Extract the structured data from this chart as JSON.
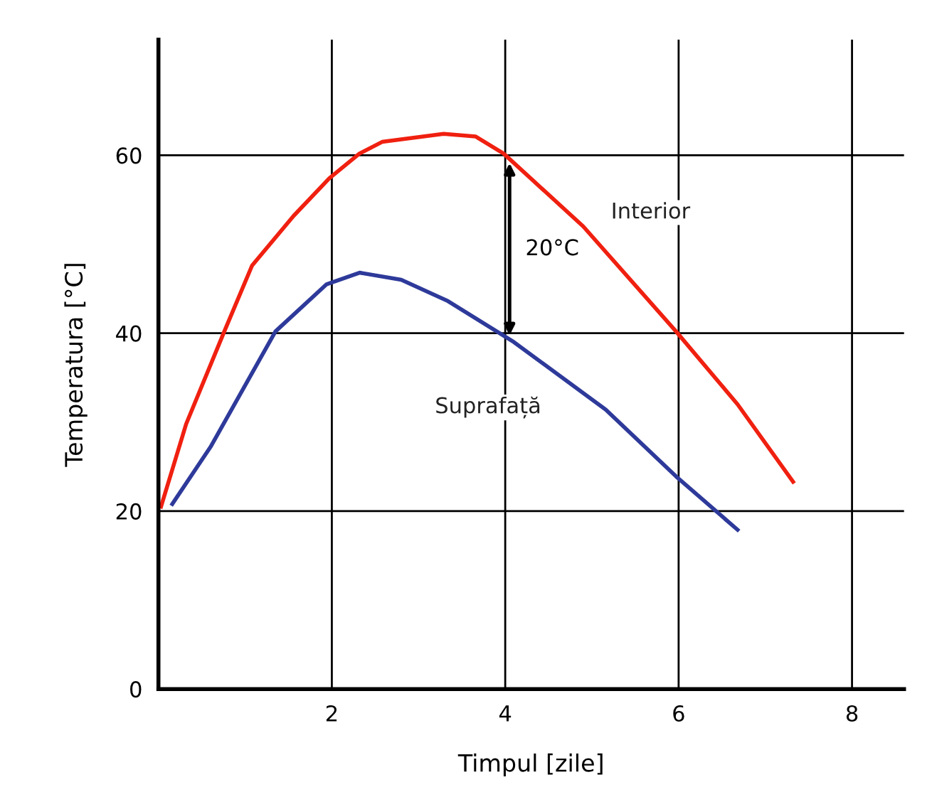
{
  "chart_data": {
    "type": "line",
    "xlabel": "Timpul [zile]",
    "ylabel": "Temperatura [°C]",
    "xlim": [
      0,
      8.6
    ],
    "ylim": [
      0,
      73
    ],
    "xticks": [
      2,
      4,
      6,
      8
    ],
    "yticks": [
      0,
      20,
      40,
      60
    ],
    "grid": true,
    "line_style": "solid",
    "marker": "none",
    "series": [
      {
        "name": "Interior",
        "color": "#f02010",
        "x": [
          0.03,
          0.32,
          0.76,
          1.08,
          1.56,
          1.97,
          2.32,
          2.58,
          3.29,
          3.66,
          3.98,
          4.9,
          5.97,
          6.68,
          7.32
        ],
        "values": [
          20.5,
          29.8,
          40.2,
          47.6,
          53.2,
          57.4,
          60.2,
          61.5,
          62.4,
          62.1,
          60.2,
          52,
          40.2,
          32,
          23.3
        ]
      },
      {
        "name": "Suprafață",
        "color": "#2e3a9a",
        "x": [
          0.16,
          0.6,
          1.35,
          1.94,
          2.32,
          2.8,
          3.34,
          4.1,
          5.16,
          5.97,
          6.68
        ],
        "values": [
          20.8,
          27.2,
          40.2,
          45.5,
          46.8,
          46,
          43.6,
          39,
          31.4,
          23.9,
          17.9
        ]
      }
    ],
    "annotations": [
      "20°C"
    ]
  }
}
